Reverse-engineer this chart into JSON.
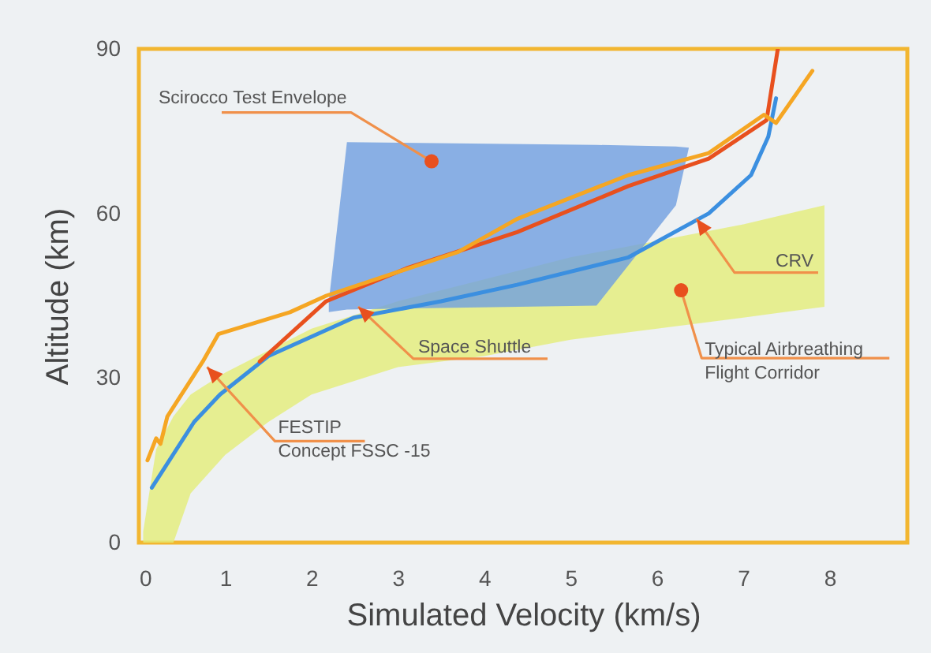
{
  "chart_data": {
    "type": "line",
    "xlabel": "Simulated Velocity  (km/s)",
    "ylabel": "Altitude  (km)",
    "xlim": [
      0,
      8.9
    ],
    "ylim": [
      0,
      90
    ],
    "xticks": [
      0,
      1,
      2,
      3,
      4,
      5,
      6,
      7,
      8
    ],
    "yticks": [
      0,
      30,
      60,
      90
    ],
    "series": [
      {
        "type": "line",
        "color": "#e4ee78",
        "x": [
          0.05,
          0.2,
          0.4,
          0.6,
          1,
          1.5,
          2,
          3,
          4,
          5,
          6,
          7,
          7.94
        ],
        "values": [
          null,
          null,
          null,
          null,
          null,
          null,
          null,
          null,
          null,
          null,
          null,
          null,
          null
        ],
        "upper": [
          2,
          17,
          23,
          27,
          31,
          35,
          39,
          44,
          48,
          52,
          55,
          58,
          61.5
        ],
        "lower": [
          0,
          0,
          0,
          9,
          16,
          22,
          27,
          32,
          34,
          37,
          39,
          41,
          43
        ]
      },
      {
        "type": "line",
        "color": "#6f9fe0",
        "x": [
          2.2,
          2.41,
          5.3,
          6.22,
          6.37
        ],
        "values": [
          null,
          null,
          null,
          null,
          null
        ],
        "upper": [
          44,
          73,
          72.5,
          72.2,
          72
        ],
        "lower": [
          42,
          42.5,
          43.2,
          61.5,
          72
        ]
      },
      {
        "color": "#3b8fe0",
        "x": [
          0.15,
          0.64,
          0.94,
          1.5,
          2.49,
          3.5,
          4.38,
          5.67,
          6.6,
          7.09,
          7.29,
          7.38
        ],
        "values": [
          10,
          22,
          27,
          34,
          41,
          44,
          47,
          52,
          60,
          67,
          74,
          81
        ]
      },
      {
        "color": "#e8501e",
        "x": [
          1.4,
          2.17,
          3.1,
          4.38,
          5.67,
          6.6,
          7.27,
          7.4
        ],
        "values": [
          33,
          44,
          50,
          56.6,
          65,
          70,
          77,
          90
        ]
      },
      {
        "color": "#f5a623",
        "x": [
          0.1,
          0.2,
          0.25,
          0.33,
          0.74,
          0.92,
          1.75,
          2.17,
          3.7,
          4.38,
          5.67,
          6.6,
          7.24,
          7.38,
          7.8
        ],
        "values": [
          15,
          19,
          18,
          23,
          33,
          38,
          42,
          45,
          53,
          59,
          67,
          71,
          78,
          76.5,
          86
        ]
      }
    ],
    "annotations": [
      {
        "text": "Scirocco Test Envelope",
        "x": 3.39,
        "y": 69.5
      },
      {
        "text": "Space Shuttle",
        "x": 2.54,
        "y": 43
      },
      {
        "text": "CRV",
        "x": 6.46,
        "y": 59
      },
      {
        "text": "Typical Airbreathing\nFlight Corridor",
        "x": 6.28,
        "y": 46
      },
      {
        "text": "FESTIP\nConcept FSSC -15",
        "x": 0.79,
        "y": 32
      }
    ]
  }
}
